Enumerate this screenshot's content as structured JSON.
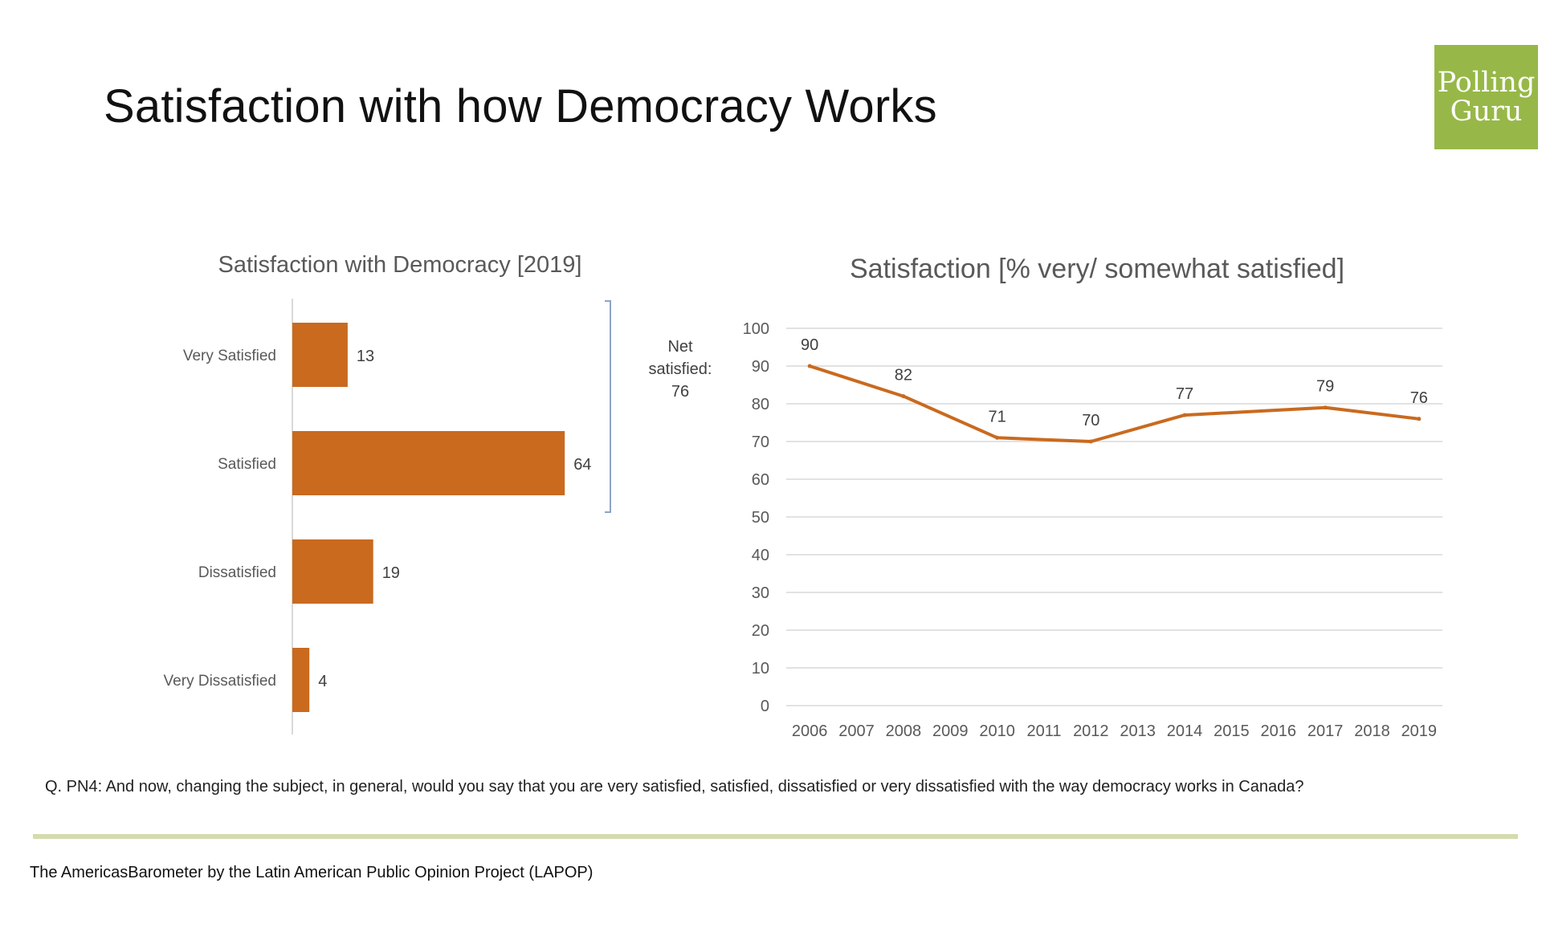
{
  "page": {
    "title": "Satisfaction with how Democracy Works",
    "logo": [
      "Polling",
      "Guru"
    ],
    "question": "Q. PN4:  And now, changing the subject, in general, would you say that you are very satisfied, satisfied, dissatisfied or very dissatisfied with the way democracy works in Canada?",
    "source": "The AmericasBarometer by the Latin American Public Opinion Project (LAPOP)",
    "accent_color": "#c96a1f",
    "logo_color": "#97b848",
    "rule_color": "#d4dcae"
  },
  "net_note": [
    "Net",
    "satisfied:",
    "76"
  ],
  "chart_data": [
    {
      "type": "bar",
      "orientation": "horizontal",
      "title": "Satisfaction with Democracy [2019]",
      "categories": [
        "Very Satisfied",
        "Satisfied",
        "Dissatisfied",
        "Very Dissatisfied"
      ],
      "values": [
        13,
        64,
        19,
        4
      ],
      "xlim": [
        0,
        100
      ],
      "color": "#c96a1f"
    },
    {
      "type": "line",
      "title": "Satisfaction [% very/ somewhat satisfied]",
      "x": [
        "2006",
        "2007",
        "2008",
        "2009",
        "2010",
        "2011",
        "2012",
        "2013",
        "2014",
        "2015",
        "2016",
        "2017",
        "2018",
        "2019"
      ],
      "points": [
        {
          "x": "2006",
          "y": 90
        },
        {
          "x": "2008",
          "y": 82
        },
        {
          "x": "2010",
          "y": 71
        },
        {
          "x": "2012",
          "y": 70
        },
        {
          "x": "2014",
          "y": 77
        },
        {
          "x": "2017",
          "y": 79
        },
        {
          "x": "2019",
          "y": 76
        }
      ],
      "ylim": [
        0,
        100
      ],
      "yticks": [
        0,
        10,
        20,
        30,
        40,
        50,
        60,
        70,
        80,
        90,
        100
      ],
      "grid": true,
      "color": "#c96a1f"
    }
  ]
}
